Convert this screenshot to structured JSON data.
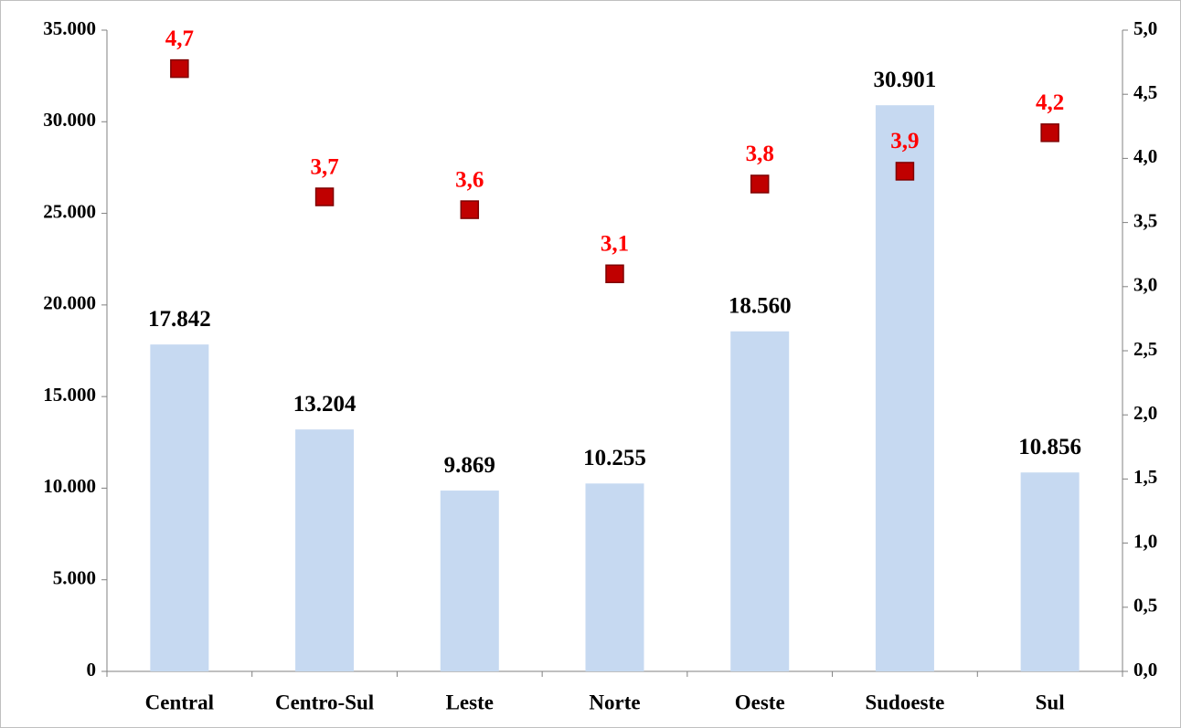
{
  "chart_data": {
    "type": "bar",
    "categories": [
      "Central",
      "Centro-Sul",
      "Leste",
      "Norte",
      "Oeste",
      "Sudoeste",
      "Sul"
    ],
    "series": [
      {
        "type": "bar",
        "color": "#c6d9f1",
        "values": [
          17842,
          13204,
          9869,
          10255,
          18560,
          30901,
          10856
        ],
        "value_labels": [
          "17.842",
          "13.204",
          "9.869",
          "10.255",
          "18.560",
          "30.901",
          "10.856"
        ]
      },
      {
        "type": "scatter",
        "axis": "y2",
        "color": "#c00000",
        "values": [
          4.7,
          3.7,
          3.6,
          3.1,
          3.8,
          3.9,
          4.2
        ],
        "value_labels": [
          "4,7",
          "3,7",
          "3,6",
          "3,1",
          "3,8",
          "3,9",
          "4,2"
        ]
      }
    ],
    "ylim": [
      0,
      35000
    ],
    "yticks": [
      0,
      {
        "value": 5000,
        "label": "5.000"
      },
      {
        "value": 10000,
        "label": "10.000"
      },
      {
        "value": 15000,
        "label": "15.000"
      },
      {
        "value": 20000,
        "label": "20.000"
      },
      {
        "value": 25000,
        "label": "25.000"
      },
      {
        "value": 30000,
        "label": "30.000"
      },
      {
        "value": 35000,
        "label": "35.000"
      }
    ],
    "y2lim": [
      0,
      5
    ],
    "y2ticks": [
      {
        "value": 0,
        "label": "0,0"
      },
      {
        "value": 0.5,
        "label": "0,5"
      },
      {
        "value": 1,
        "label": "1,0"
      },
      {
        "value": 1.5,
        "label": "1,5"
      },
      {
        "value": 2,
        "label": "2,0"
      },
      {
        "value": 2.5,
        "label": "2,5"
      },
      {
        "value": 3,
        "label": "3,0"
      },
      {
        "value": 3.5,
        "label": "3,5"
      },
      {
        "value": 4,
        "label": "4,0"
      },
      {
        "value": 4.5,
        "label": "4,5"
      },
      {
        "value": 5,
        "label": "5,0"
      }
    ]
  }
}
